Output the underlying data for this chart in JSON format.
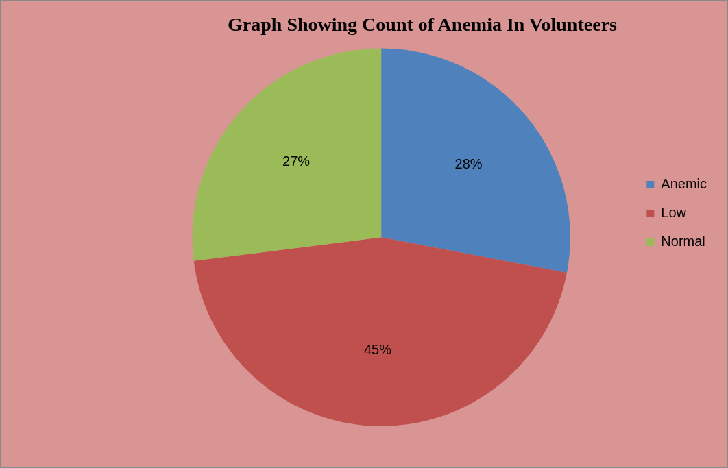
{
  "chart_data": {
    "type": "pie",
    "title": "Graph Showing Count of Anemia In Volunteers",
    "categories": [
      "Anemic",
      "Low",
      "Normal"
    ],
    "values": [
      28,
      45,
      27
    ],
    "colors": [
      "#4f81bd",
      "#c0504d",
      "#9bbb59"
    ],
    "value_labels": [
      "28%",
      "45%",
      "27%"
    ],
    "legend": "right"
  }
}
